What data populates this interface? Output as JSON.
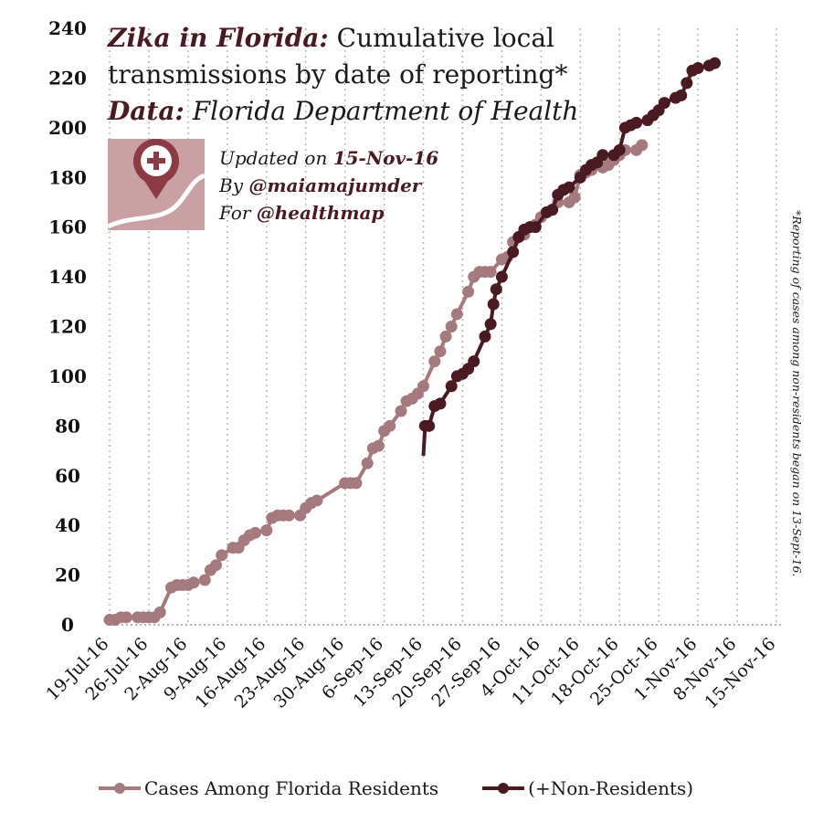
{
  "title": {
    "accent": "Zika in Florida:",
    "line1_rest": " Cumulative local",
    "line2": "transmissions by date of reporting*",
    "data_label": "Data:",
    "data_source": " Florida Department of Health"
  },
  "info": {
    "updated_prefix": "Updated on ",
    "updated_date": "15-Nov-16",
    "by_prefix": "By ",
    "by_handle": "@maiamajumder",
    "for_prefix": "For ",
    "for_handle": "@healthmap"
  },
  "side_note": "*Reporting of cases among non-residents began on 13-Sept-16.",
  "logo_icon": "healthmap-map-pin-plus-icon",
  "colors": {
    "residents": "#a47a7e",
    "non_residents": "#4a1a22",
    "accent": "#4a1a22",
    "logo_bg": "#c9a1a4"
  },
  "chart_data": {
    "type": "line",
    "title": "Zika in Florida: Cumulative local transmissions by date of reporting*",
    "xlabel": "",
    "ylabel": "",
    "ylim": [
      0,
      240
    ],
    "yticks": [
      0,
      20,
      40,
      60,
      80,
      100,
      120,
      140,
      160,
      180,
      200,
      220,
      240
    ],
    "xlim_day": [
      0,
      120
    ],
    "xticks": [
      {
        "label": "19-Jul-16",
        "day": 0
      },
      {
        "label": "26-Jul-16",
        "day": 7
      },
      {
        "label": "2-Aug-16",
        "day": 14
      },
      {
        "label": "9-Aug-16",
        "day": 21
      },
      {
        "label": "16-Aug-16",
        "day": 28
      },
      {
        "label": "23-Aug-16",
        "day": 35
      },
      {
        "label": "30-Aug-16",
        "day": 42
      },
      {
        "label": "6-Sep-16",
        "day": 49
      },
      {
        "label": "13-Sep-16",
        "day": 56
      },
      {
        "label": "20-Sep-16",
        "day": 63
      },
      {
        "label": "27-Sep-16",
        "day": 70
      },
      {
        "label": "4-Oct-16",
        "day": 77
      },
      {
        "label": "11-Oct-16",
        "day": 84
      },
      {
        "label": "18-Oct-16",
        "day": 91
      },
      {
        "label": "25-Oct-16",
        "day": 98
      },
      {
        "label": "1-Nov-16",
        "day": 105
      },
      {
        "label": "8-Nov-16",
        "day": 112
      },
      {
        "label": "15-Nov-16",
        "day": 119
      }
    ],
    "grid": true,
    "legend_placement": "bottom",
    "series": [
      {
        "name": "Cases Among Florida Residents",
        "points": [
          [
            0,
            2
          ],
          [
            1,
            2
          ],
          [
            2,
            3
          ],
          [
            3,
            3
          ],
          [
            5,
            3
          ],
          [
            6,
            3
          ],
          [
            7,
            3
          ],
          [
            8,
            3
          ],
          [
            9,
            5
          ],
          [
            11,
            15
          ],
          [
            12,
            16
          ],
          [
            13,
            16
          ],
          [
            14,
            16
          ],
          [
            15,
            17
          ],
          [
            17,
            18
          ],
          [
            18,
            22
          ],
          [
            19,
            24
          ],
          [
            20,
            28
          ],
          [
            22,
            31
          ],
          [
            23,
            31
          ],
          [
            24,
            34
          ],
          [
            25,
            36
          ],
          [
            26,
            37
          ],
          [
            28,
            38
          ],
          [
            29,
            43
          ],
          [
            30,
            44
          ],
          [
            31,
            44
          ],
          [
            32,
            44
          ],
          [
            34,
            44
          ],
          [
            35,
            47
          ],
          [
            36,
            49
          ],
          [
            37,
            50
          ],
          [
            42,
            57
          ],
          [
            43,
            57
          ],
          [
            44,
            57
          ],
          [
            46,
            65
          ],
          [
            47,
            71
          ],
          [
            48,
            72
          ],
          [
            49,
            78
          ],
          [
            50,
            80
          ],
          [
            52,
            86
          ],
          [
            53,
            90
          ],
          [
            54,
            91
          ],
          [
            55,
            93
          ],
          [
            56,
            96
          ],
          [
            58,
            106
          ],
          [
            59,
            110
          ],
          [
            60,
            116
          ],
          [
            61,
            120
          ],
          [
            62,
            125
          ],
          [
            64,
            134
          ],
          [
            65,
            140
          ],
          [
            66,
            142
          ],
          [
            67,
            142
          ],
          [
            68,
            142
          ],
          [
            70,
            147
          ],
          [
            71,
            148
          ],
          [
            72,
            154
          ],
          [
            73,
            156
          ],
          [
            74,
            157
          ],
          [
            76,
            161
          ],
          [
            77,
            164
          ],
          [
            78,
            166
          ],
          [
            79,
            167
          ],
          [
            80,
            170
          ],
          [
            82,
            170
          ],
          [
            83,
            172
          ],
          [
            84,
            181
          ],
          [
            85,
            182
          ],
          [
            86,
            183
          ],
          [
            88,
            184
          ],
          [
            89,
            185
          ],
          [
            90,
            187
          ],
          [
            91,
            189
          ],
          [
            92,
            191
          ],
          [
            94,
            191
          ],
          [
            95,
            193
          ]
        ]
      },
      {
        "name": "(+Non-Residents)",
        "points": [
          [
            56,
            68
          ],
          [
            56.3,
            80
          ],
          [
            57,
            80
          ],
          [
            58,
            88
          ],
          [
            59,
            89
          ],
          [
            61,
            96
          ],
          [
            62,
            100
          ],
          [
            63,
            101
          ],
          [
            64,
            103
          ],
          [
            65,
            106
          ],
          [
            67,
            116
          ],
          [
            68,
            121
          ],
          [
            68.5,
            129
          ],
          [
            69,
            135
          ],
          [
            70,
            140
          ],
          [
            72,
            150
          ],
          [
            73,
            156
          ],
          [
            74,
            159
          ],
          [
            75,
            160
          ],
          [
            76,
            160
          ],
          [
            78,
            166
          ],
          [
            79,
            167
          ],
          [
            80,
            173
          ],
          [
            81,
            175
          ],
          [
            82,
            176
          ],
          [
            84,
            180
          ],
          [
            85,
            183
          ],
          [
            86,
            185
          ],
          [
            87,
            186
          ],
          [
            88,
            189
          ],
          [
            90,
            189
          ],
          [
            91,
            191
          ],
          [
            92,
            200
          ],
          [
            93,
            201
          ],
          [
            94,
            202
          ],
          [
            96,
            203
          ],
          [
            97,
            205
          ],
          [
            98,
            207
          ],
          [
            99,
            210
          ],
          [
            101,
            212
          ],
          [
            102,
            213
          ],
          [
            103,
            218
          ],
          [
            104,
            223
          ],
          [
            105,
            224
          ],
          [
            107,
            225
          ],
          [
            108,
            226
          ]
        ]
      }
    ]
  }
}
